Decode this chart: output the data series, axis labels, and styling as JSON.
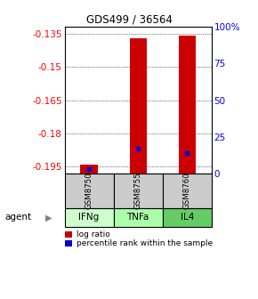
{
  "title": "GDS499 / 36564",
  "samples": [
    "GSM8750",
    "GSM8755",
    "GSM8760"
  ],
  "agents": [
    "IFNg",
    "TNFa",
    "IL4"
  ],
  "ylim_left": [
    -0.198,
    -0.132
  ],
  "ylim_right": [
    0,
    100
  ],
  "yticks_left": [
    -0.195,
    -0.18,
    -0.165,
    -0.15,
    -0.135
  ],
  "yticks_right": [
    0,
    25,
    50,
    75,
    100
  ],
  "ytick_labels_left": [
    "-0.195",
    "-0.18",
    "-0.165",
    "-0.15",
    "-0.135"
  ],
  "ytick_labels_right": [
    "0",
    "25",
    "50",
    "75",
    "100%"
  ],
  "log_ratios": [
    -0.194,
    -0.137,
    -0.136
  ],
  "percentile_ranks": [
    3,
    17,
    14
  ],
  "bar_bottom": -0.198,
  "bar_color": "#cc0000",
  "dot_color": "#0000cc",
  "bar_width": 0.35,
  "sample_box_color": "#cccccc",
  "agent_box_colors": [
    "#ccffcc",
    "#aaffaa",
    "#66cc66"
  ],
  "legend_items": [
    {
      "color": "#cc0000",
      "label": "log ratio"
    },
    {
      "color": "#0000cc",
      "label": "percentile rank within the sample"
    }
  ]
}
